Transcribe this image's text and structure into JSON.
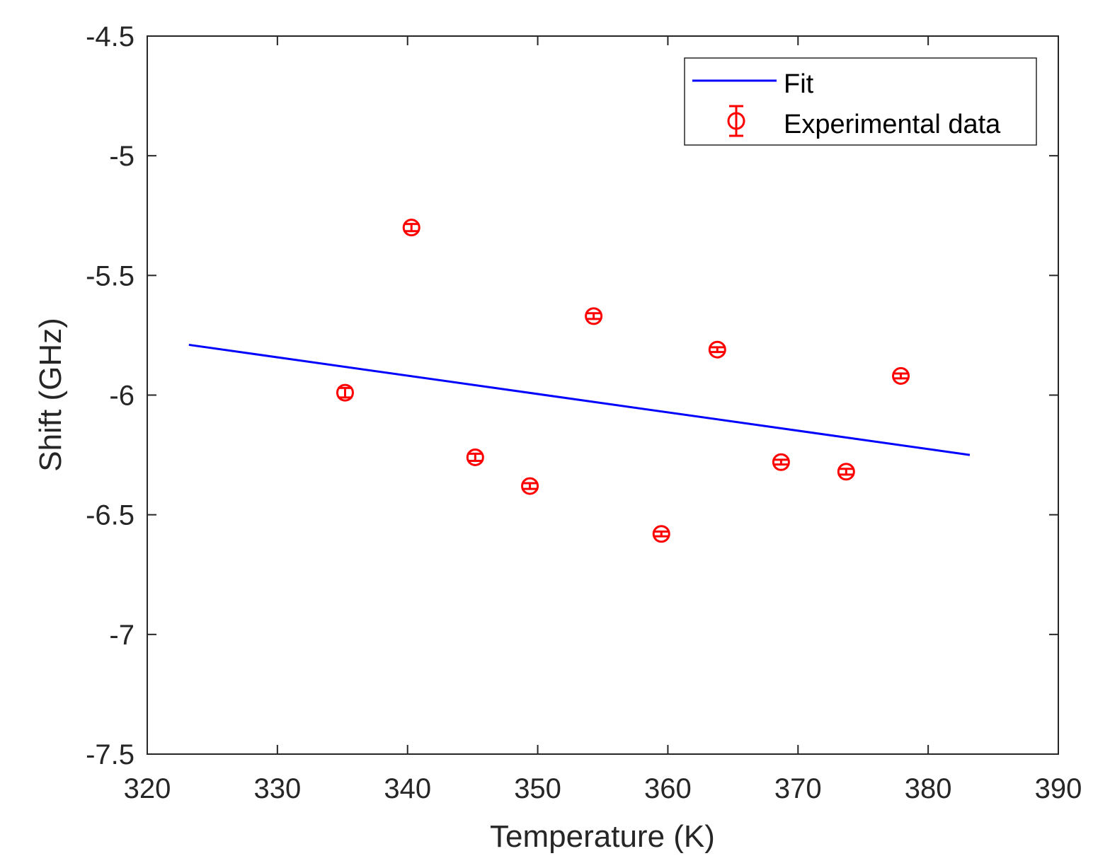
{
  "chart_data": {
    "type": "scatter",
    "title": "",
    "xlabel": "Temperature (K)",
    "ylabel": "Shift (GHz)",
    "xlim": [
      320,
      390
    ],
    "ylim": [
      -7.5,
      -4.5
    ],
    "xticks": [
      320,
      330,
      340,
      350,
      360,
      370,
      380,
      390
    ],
    "xtick_labels": [
      "320",
      "330",
      "340",
      "350",
      "360",
      "370",
      "380",
      "390"
    ],
    "yticks": [
      -4.5,
      -5,
      -5.5,
      -6,
      -6.5,
      -7,
      -7.5
    ],
    "ytick_labels": [
      "-4.5",
      "-5",
      "-5.5",
      "-6",
      "-6.5",
      "-7",
      "-7.5"
    ],
    "grid": false,
    "legend_position": "top-right",
    "series": [
      {
        "name": "Fit",
        "kind": "line",
        "color": "#0000ff",
        "x": [
          323.2,
          383.2
        ],
        "y": [
          -5.79,
          -6.25
        ]
      },
      {
        "name": "Experimental data",
        "kind": "errorbar",
        "color": "#ff0000",
        "x": [
          335.2,
          340.3,
          345.2,
          349.4,
          354.3,
          359.5,
          363.8,
          368.7,
          373.7,
          377.9
        ],
        "y": [
          -5.99,
          -5.3,
          -6.26,
          -6.38,
          -5.67,
          -6.58,
          -5.81,
          -6.28,
          -6.32,
          -5.92
        ],
        "yerr": [
          0.02,
          0.015,
          0.015,
          0.012,
          0.012,
          0.01,
          0.01,
          0.01,
          0.012,
          0.01
        ]
      }
    ]
  }
}
